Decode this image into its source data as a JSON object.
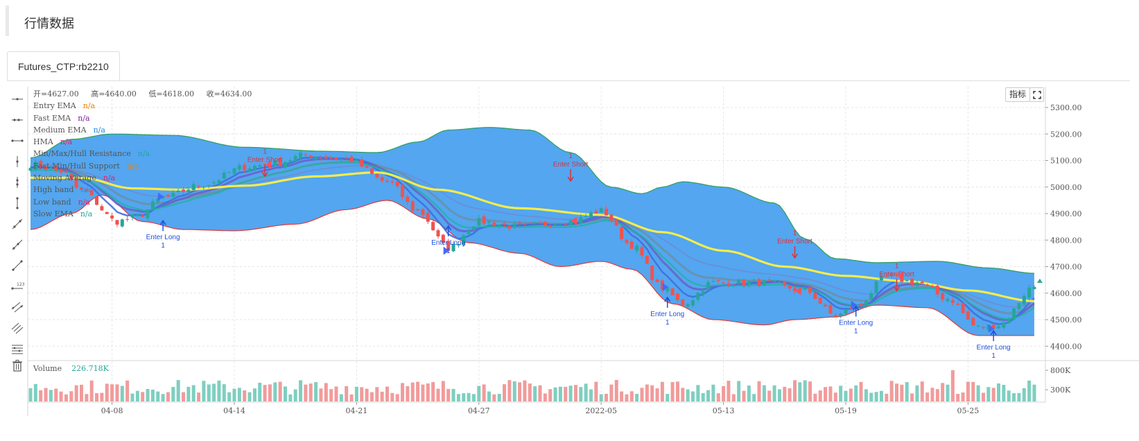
{
  "page": {
    "title": "行情数据"
  },
  "tabs": [
    {
      "label": "Futures_CTP:rb2210",
      "active": true
    }
  ],
  "toolbar": {
    "tools": [
      "horizontal-line-icon",
      "horizontal-ray-icon",
      "extended-line-icon",
      "vertical-line-icon",
      "vertical-segment-icon",
      "vertical-ray-icon",
      "trend-line-icon",
      "ray-icon",
      "arrow-line-icon",
      "price-label-icon",
      "parallel-channel-icon",
      "fib-channel-icon",
      "horizontal-lines-icon",
      "trash-icon"
    ]
  },
  "buttons": {
    "indicators": "指标"
  },
  "ohlc": {
    "open": "开=4627.00",
    "high": "高=4640.00",
    "low": "低=4618.00",
    "close": "收=4634.00"
  },
  "legend": [
    {
      "name": "Entry EMA",
      "value": "n/a",
      "color": "#f57c00"
    },
    {
      "name": "Fast EMA",
      "value": "n/a",
      "color": "#7b1fa2"
    },
    {
      "name": "Medium EMA",
      "value": "n/a",
      "color": "#1e88e5"
    },
    {
      "name": "HMA",
      "value": "n/a",
      "color": "#e91e63"
    },
    {
      "name": "Min/Max/Hull Resistance",
      "value": "n/a",
      "color": "#26a69a"
    },
    {
      "name": "Fast Min/Hull Support",
      "value": "n/a",
      "color": "#f57c00"
    },
    {
      "name": "Moving Average",
      "value": "n/a",
      "color": "#e91e63"
    },
    {
      "name": "High band",
      "value": "n/a",
      "color": "#2196f3"
    },
    {
      "name": "Low band",
      "value": "n/a",
      "color": "#e91e63"
    },
    {
      "name": "Slow EMA",
      "value": "n/a",
      "color": "#26a69a"
    }
  ],
  "volume": {
    "label": "Volume",
    "value": "226.718K"
  },
  "colors": {
    "up": "#26a69a",
    "down": "#ef5350",
    "band_fill": "#4da3ee",
    "ma": "#f7ec4b",
    "long": "#1f4fe0",
    "short": "#e0303a"
  },
  "chart_data": {
    "type": "candlestick",
    "price_axis": {
      "ticks": [
        "5300.00",
        "5200.00",
        "5100.00",
        "5000.00",
        "4900.00",
        "4800.00",
        "4700.00",
        "4600.00",
        "4500.00",
        "4400.00"
      ],
      "range": [
        4350,
        5340
      ]
    },
    "volume_axis": {
      "ticks": [
        "800K",
        "300K"
      ],
      "range": [
        0,
        900
      ]
    },
    "x_axis": {
      "labels": [
        {
          "label": "04-08",
          "bar": 16
        },
        {
          "label": "04-14",
          "bar": 40
        },
        {
          "label": "04-21",
          "bar": 64
        },
        {
          "label": "04-27",
          "bar": 88
        },
        {
          "label": "2022-05",
          "bar": 112
        },
        {
          "label": "05-13",
          "bar": 136
        },
        {
          "label": "05-19",
          "bar": 160
        },
        {
          "label": "05-25",
          "bar": 184
        }
      ]
    },
    "bar_count": 198,
    "close_anchors": [
      [
        0,
        5085
      ],
      [
        6,
        5060
      ],
      [
        10,
        4985
      ],
      [
        17,
        4870
      ],
      [
        21,
        4890
      ],
      [
        26,
        4960
      ],
      [
        34,
        5010
      ],
      [
        42,
        5075
      ],
      [
        48,
        5090
      ],
      [
        54,
        5120
      ],
      [
        62,
        5105
      ],
      [
        70,
        5020
      ],
      [
        76,
        4910
      ],
      [
        82,
        4770
      ],
      [
        88,
        4870
      ],
      [
        96,
        4850
      ],
      [
        106,
        4870
      ],
      [
        112,
        4910
      ],
      [
        118,
        4780
      ],
      [
        124,
        4620
      ],
      [
        128,
        4560
      ],
      [
        134,
        4640
      ],
      [
        144,
        4640
      ],
      [
        152,
        4610
      ],
      [
        158,
        4515
      ],
      [
        162,
        4550
      ],
      [
        168,
        4660
      ],
      [
        174,
        4640
      ],
      [
        180,
        4580
      ],
      [
        186,
        4470
      ],
      [
        190,
        4480
      ],
      [
        197,
        4625
      ]
    ],
    "bands": {
      "high_anchors": [
        [
          0,
          5110
        ],
        [
          8,
          5180
        ],
        [
          16,
          5200
        ],
        [
          28,
          5195
        ],
        [
          42,
          5150
        ],
        [
          58,
          5135
        ],
        [
          68,
          5130
        ],
        [
          76,
          5170
        ],
        [
          82,
          5215
        ],
        [
          90,
          5225
        ],
        [
          98,
          5215
        ],
        [
          106,
          5130
        ],
        [
          114,
          5000
        ],
        [
          120,
          4975
        ],
        [
          124,
          5000
        ],
        [
          128,
          5020
        ],
        [
          136,
          5000
        ],
        [
          146,
          4940
        ],
        [
          152,
          4805
        ],
        [
          158,
          4730
        ],
        [
          166,
          4715
        ],
        [
          178,
          4720
        ],
        [
          188,
          4695
        ],
        [
          197,
          4675
        ]
      ],
      "low_anchors": [
        [
          0,
          4840
        ],
        [
          8,
          4900
        ],
        [
          14,
          4970
        ],
        [
          22,
          4870
        ],
        [
          30,
          4840
        ],
        [
          40,
          4835
        ],
        [
          52,
          4860
        ],
        [
          62,
          4915
        ],
        [
          70,
          4950
        ],
        [
          78,
          4880
        ],
        [
          86,
          4790
        ],
        [
          96,
          4750
        ],
        [
          104,
          4700
        ],
        [
          112,
          4720
        ],
        [
          118,
          4690
        ],
        [
          126,
          4560
        ],
        [
          134,
          4500
        ],
        [
          144,
          4480
        ],
        [
          150,
          4500
        ],
        [
          158,
          4510
        ],
        [
          166,
          4555
        ],
        [
          176,
          4545
        ],
        [
          186,
          4440
        ],
        [
          197,
          4440
        ]
      ]
    },
    "moving_average_anchors": [
      [
        0,
        5035
      ],
      [
        10,
        5035
      ],
      [
        20,
        4995
      ],
      [
        30,
        4990
      ],
      [
        42,
        5005
      ],
      [
        56,
        5040
      ],
      [
        68,
        5055
      ],
      [
        80,
        4990
      ],
      [
        96,
        4920
      ],
      [
        112,
        4895
      ],
      [
        124,
        4830
      ],
      [
        136,
        4760
      ],
      [
        148,
        4700
      ],
      [
        160,
        4665
      ],
      [
        172,
        4645
      ],
      [
        184,
        4610
      ],
      [
        197,
        4570
      ]
    ],
    "signals": [
      {
        "type": "long",
        "bar": 26,
        "label": "Enter Long",
        "qty": "1"
      },
      {
        "type": "short",
        "bar": 46,
        "label": "Enter Short",
        "qty": "1"
      },
      {
        "type": "long",
        "bar": 82,
        "label": "Enter Long",
        "qty": "1"
      },
      {
        "type": "short",
        "bar": 106,
        "label": "Enter Short",
        "qty": "1"
      },
      {
        "type": "long",
        "bar": 125,
        "label": "Enter Long",
        "qty": "1"
      },
      {
        "type": "short",
        "bar": 150,
        "label": "Enter Short",
        "qty": "1"
      },
      {
        "type": "long",
        "bar": 162,
        "label": "Enter Long",
        "qty": "1"
      },
      {
        "type": "short",
        "bar": 170,
        "label": "Enter Short",
        "qty": "1"
      },
      {
        "type": "long",
        "bar": 189,
        "label": "Enter Long",
        "qty": "1"
      }
    ]
  }
}
